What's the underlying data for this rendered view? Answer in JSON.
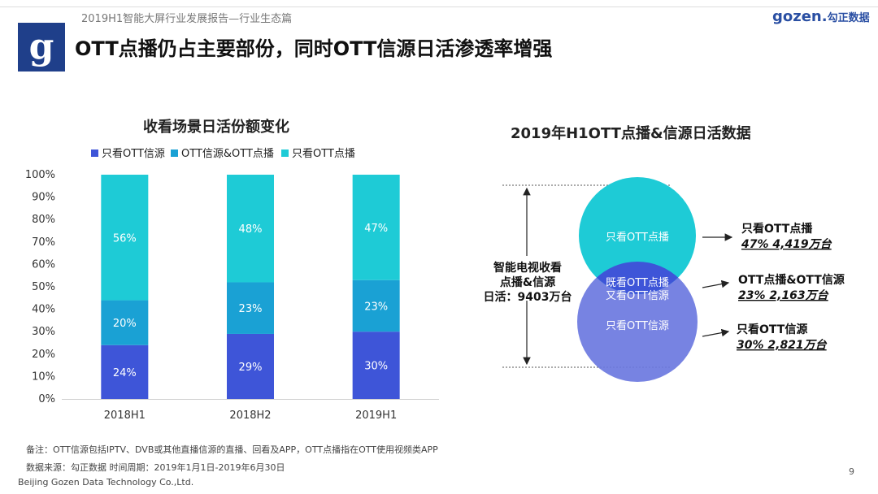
{
  "report_subtitle": "2019H1智能大屏行业发展报告—行业生态篇",
  "page_title": "OTT点播仍占主要部份，同时OTT信源日活渗透率增强",
  "brand": {
    "en": "gozen.",
    "cn": "勾正数据"
  },
  "colors": {
    "only_ott_source": "#3e55d8",
    "both": "#1aa1d4",
    "only_ott_vod": "#1ecbd6",
    "header_bar": "#1f3f8a"
  },
  "chart_data": {
    "type": "bar",
    "stacked": true,
    "title": "收看场景日活份额变化",
    "categories": [
      "2018H1",
      "2018H2",
      "2019H1"
    ],
    "series": [
      {
        "name": "只看OTT信源",
        "values": [
          24,
          29,
          30
        ],
        "labels": [
          "24%",
          "29%",
          "30%"
        ]
      },
      {
        "name": "OTT信源&OTT点播",
        "values": [
          20,
          23,
          23
        ],
        "labels": [
          "20%",
          "23%",
          "23%"
        ]
      },
      {
        "name": "只看OTT点播",
        "values": [
          56,
          48,
          47
        ],
        "labels": [
          "56%",
          "48%",
          "47%"
        ]
      }
    ],
    "ylim": [
      0,
      100
    ],
    "yticks": [
      "0%",
      "10%",
      "20%",
      "30%",
      "40%",
      "50%",
      "60%",
      "70%",
      "80%",
      "90%",
      "100%"
    ],
    "legend_position": "top"
  },
  "venn": {
    "title": "2019年H1OTT点播&信源日活数据",
    "total_label_lines": [
      "智能电视收看",
      "点播&信源",
      "日活：9403万台"
    ],
    "top_circle_label": "只看OTT点播",
    "overlap_label_lines": [
      "既看OTT点播",
      "又看OTT信源"
    ],
    "bottom_circle_label": "只看OTT信源",
    "callouts": [
      {
        "name": "只看OTT点播",
        "value": "47%  4,419万台"
      },
      {
        "name": "OTT点播&OTT信源",
        "value": "23%  2,163万台"
      },
      {
        "name": "只看OTT信源",
        "value": "30%  2,821万台"
      }
    ]
  },
  "footnote": "备注：OTT信源包括IPTV、DVB或其他直播信源的直播、回看及APP，OTT点播指在OTT使用视频类APP",
  "source": "数据来源：勾正数据      时间周期：2019年1月1日-2019年6月30日",
  "company": "Beijing Gozen Data Technology Co.,Ltd.",
  "page_number": "9"
}
